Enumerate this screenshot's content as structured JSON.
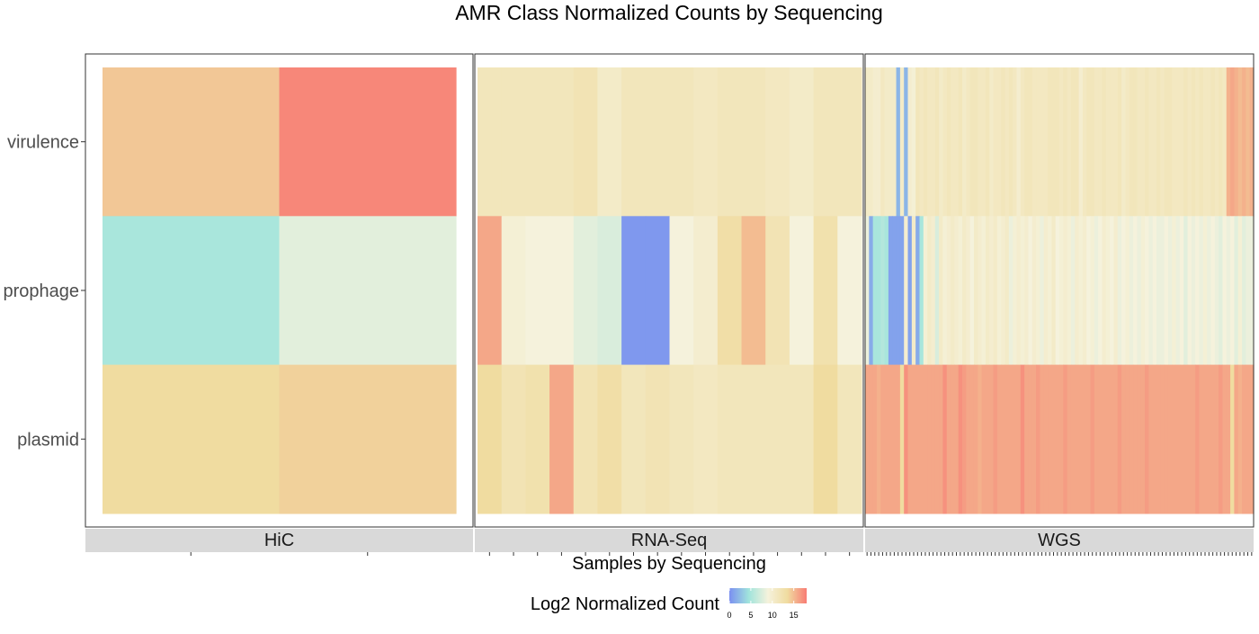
{
  "chart_data": {
    "type": "heatmap",
    "title": "AMR Class Normalized Counts by Sequencing",
    "xlabel": "Samples by Sequencing",
    "ylabel": "",
    "rows": [
      "virulence",
      "prophage",
      "plasmid"
    ],
    "facets": [
      {
        "name": "HiC",
        "n_samples": 2,
        "values": {
          "virulence": [
            14.5,
            17.5
          ],
          "prophage": [
            5.0,
            8.0
          ],
          "plasmid": [
            13.5,
            14.0
          ]
        }
      },
      {
        "name": "RNA-Seq",
        "n_samples": 16,
        "values": {
          "virulence": [
            11.5,
            11.5,
            11.5,
            11.5,
            12.0,
            10.5,
            11.5,
            11.5,
            11.5,
            11.0,
            11.5,
            11.5,
            11.0,
            10.5,
            11.5,
            11.5
          ],
          "prophage": [
            16.0,
            9.5,
            9.0,
            9.0,
            8.0,
            7.5,
            0.5,
            0.5,
            9.0,
            10.0,
            13.0,
            15.0,
            12.0,
            9.0,
            12.5,
            9.0
          ],
          "plasmid": [
            13.5,
            12.0,
            12.5,
            16.0,
            12.0,
            13.0,
            11.5,
            12.0,
            11.5,
            11.0,
            11.5,
            11.5,
            11.5,
            11.5,
            13.5,
            11.5
          ]
        }
      },
      {
        "name": "WGS",
        "n_samples": 100,
        "values": {
          "virulence": [
            10.5,
            10.5,
            10.0,
            10.0,
            11.0,
            10.5,
            10.5,
            10.5,
            2.0,
            10.5,
            2.0,
            10.0,
            9.5,
            11.5,
            11.0,
            11.5,
            11.0,
            11.0,
            11.5,
            10.5,
            11.0,
            11.5,
            11.0,
            11.0,
            11.5,
            10.5,
            11.0,
            11.5,
            11.5,
            11.0,
            11.0,
            11.5,
            10.5,
            11.0,
            11.0,
            11.5,
            11.0,
            11.5,
            11.0,
            10.0,
            11.0,
            11.5,
            11.5,
            11.0,
            11.0,
            11.0,
            11.0,
            11.5,
            11.5,
            11.5,
            11.0,
            11.5,
            11.0,
            11.5,
            11.5,
            10.0,
            11.0,
            11.5,
            11.5,
            11.0,
            11.0,
            11.5,
            11.0,
            11.0,
            11.0,
            11.5,
            10.5,
            11.0,
            11.5,
            11.5,
            11.0,
            11.0,
            11.5,
            11.0,
            11.0,
            11.5,
            11.0,
            11.5,
            11.5,
            11.0,
            11.0,
            11.0,
            11.5,
            11.0,
            11.5,
            11.0,
            11.5,
            11.0,
            11.0,
            11.5,
            11.0,
            11.5,
            11.0,
            15.5,
            16.0,
            15.5,
            15.0,
            15.5,
            15.0,
            15.5
          ],
          "prophage": [
            8.5,
            1.5,
            5.0,
            5.0,
            5.5,
            5.0,
            1.0,
            1.0,
            1.0,
            1.0,
            10.0,
            1.0,
            10.5,
            1.5,
            5.0,
            9.5,
            10.5,
            10.0,
            7.5,
            10.5,
            9.5,
            10.0,
            10.5,
            10.0,
            9.5,
            10.5,
            10.0,
            9.0,
            10.5,
            10.0,
            9.5,
            10.5,
            10.0,
            10.5,
            9.5,
            10.0,
            10.5,
            8.5,
            9.5,
            10.0,
            9.5,
            10.0,
            9.0,
            10.0,
            9.5,
            8.5,
            10.0,
            9.5,
            10.5,
            9.0,
            9.5,
            10.0,
            9.5,
            8.5,
            10.0,
            9.5,
            10.0,
            9.0,
            9.5,
            8.5,
            9.0,
            10.0,
            9.5,
            9.0,
            10.0,
            8.5,
            9.0,
            9.5,
            8.5,
            9.0,
            8.5,
            9.5,
            9.0,
            8.5,
            9.0,
            8.5,
            8.5,
            9.0,
            8.5,
            9.5,
            8.5,
            9.0,
            8.0,
            9.0,
            8.5,
            9.0,
            8.5,
            9.5,
            8.5,
            9.0,
            8.5,
            8.0,
            9.0,
            8.5,
            9.0,
            8.0,
            9.5,
            8.0,
            8.5,
            8.5
          ],
          "plasmid": [
            16.0,
            16.0,
            16.0,
            15.5,
            16.0,
            16.0,
            16.0,
            16.0,
            16.0,
            13.5,
            17.0,
            16.0,
            16.0,
            16.0,
            16.0,
            16.0,
            16.0,
            16.0,
            16.0,
            16.0,
            17.0,
            16.0,
            16.0,
            16.0,
            17.0,
            16.5,
            16.0,
            16.0,
            16.0,
            15.5,
            16.0,
            16.0,
            16.0,
            16.5,
            16.0,
            16.0,
            16.0,
            16.0,
            16.0,
            16.0,
            17.0,
            16.0,
            16.0,
            16.0,
            16.5,
            16.0,
            16.0,
            16.0,
            16.0,
            16.0,
            16.0,
            16.5,
            16.0,
            16.0,
            16.0,
            16.0,
            16.0,
            16.0,
            16.5,
            16.0,
            16.0,
            16.0,
            16.0,
            16.0,
            16.0,
            16.5,
            16.0,
            16.0,
            16.0,
            16.0,
            16.0,
            16.0,
            16.5,
            16.0,
            16.0,
            16.0,
            16.0,
            16.0,
            16.0,
            16.0,
            16.0,
            16.0,
            16.0,
            16.0,
            16.0,
            16.5,
            16.0,
            16.0,
            16.0,
            16.0,
            16.0,
            16.5,
            16.0,
            16.0,
            13.5,
            16.0,
            15.5,
            16.0,
            16.0,
            16.0
          ]
        }
      }
    ],
    "legend": {
      "title": "Log2 Normalized Count",
      "position": "bottom",
      "ticks": [
        0,
        5,
        10,
        15
      ],
      "range": [
        0,
        18
      ],
      "colors": [
        "#7b8ff0",
        "#a0e4dc",
        "#f5f2dc",
        "#f0dca0",
        "#f87c74"
      ]
    }
  }
}
